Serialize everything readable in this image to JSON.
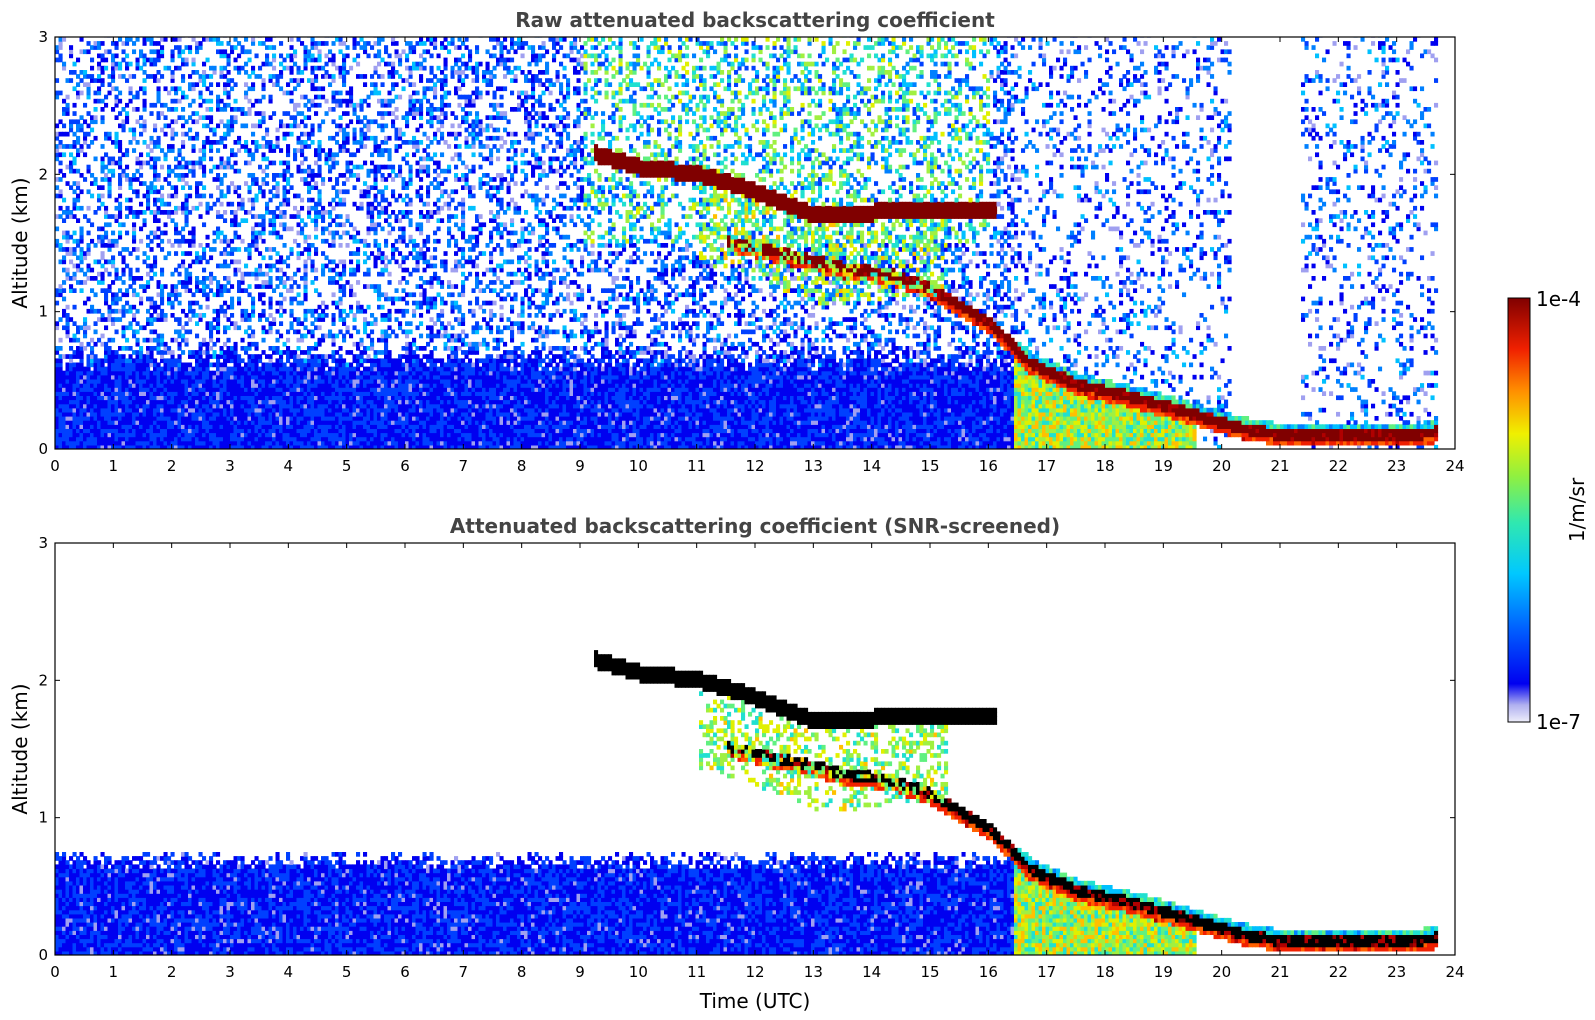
{
  "chart_data": [
    {
      "type": "heatmap",
      "title": "Raw attenuated backscattering coefficient",
      "xlabel": "",
      "ylabel": "Altitude (km)",
      "xlim": [
        0,
        24
      ],
      "ylim": [
        0,
        3
      ],
      "xticks": [
        "0",
        "1",
        "2",
        "3",
        "4",
        "5",
        "6",
        "7",
        "8",
        "9",
        "10",
        "11",
        "12",
        "13",
        "14",
        "15",
        "16",
        "17",
        "18",
        "19",
        "20",
        "21",
        "22",
        "23",
        "24"
      ],
      "yticks": [
        "0",
        "1",
        "2",
        "3"
      ],
      "screened": false,
      "cloud_layer": [
        [
          9.2,
          2.2
        ],
        [
          10,
          2.1
        ],
        [
          11,
          2.05
        ],
        [
          11.8,
          1.95
        ],
        [
          12.4,
          1.85
        ],
        [
          13,
          1.75
        ],
        [
          13.8,
          1.75
        ],
        [
          14.4,
          1.8
        ],
        [
          15,
          1.8
        ],
        [
          16.1,
          1.8
        ]
      ],
      "lower_layer": [
        [
          11.5,
          1.55
        ],
        [
          12.5,
          1.45
        ],
        [
          13.5,
          1.35
        ],
        [
          14.3,
          1.3
        ],
        [
          15,
          1.2
        ],
        [
          16,
          0.95
        ],
        [
          16.7,
          0.65
        ],
        [
          17.5,
          0.5
        ],
        [
          18.5,
          0.4
        ],
        [
          19.5,
          0.28
        ],
        [
          20.3,
          0.18
        ],
        [
          21,
          0.13
        ],
        [
          22,
          0.12
        ],
        [
          23,
          0.12
        ],
        [
          23.6,
          0.15
        ]
      ]
    },
    {
      "type": "heatmap",
      "title": "Attenuated backscattering coefficient (SNR-screened)",
      "xlabel": "Time (UTC)",
      "ylabel": "Altitude (km)",
      "xlim": [
        0,
        24
      ],
      "ylim": [
        0,
        3
      ],
      "xticks": [
        "0",
        "1",
        "2",
        "3",
        "4",
        "5",
        "6",
        "7",
        "8",
        "9",
        "10",
        "11",
        "12",
        "13",
        "14",
        "15",
        "16",
        "17",
        "18",
        "19",
        "20",
        "21",
        "22",
        "23",
        "24"
      ],
      "yticks": [
        "0",
        "1",
        "2",
        "3"
      ],
      "screened": true,
      "cloud_layer": [
        [
          9.2,
          2.2
        ],
        [
          10,
          2.1
        ],
        [
          11,
          2.05
        ],
        [
          11.8,
          1.95
        ],
        [
          12.4,
          1.85
        ],
        [
          13,
          1.75
        ],
        [
          13.8,
          1.75
        ],
        [
          14.4,
          1.8
        ],
        [
          15,
          1.8
        ],
        [
          16.1,
          1.8
        ]
      ],
      "lower_layer": [
        [
          11.5,
          1.55
        ],
        [
          12.5,
          1.45
        ],
        [
          13.5,
          1.35
        ],
        [
          14.3,
          1.3
        ],
        [
          15,
          1.2
        ],
        [
          16,
          0.95
        ],
        [
          16.7,
          0.65
        ],
        [
          17.5,
          0.5
        ],
        [
          18.5,
          0.4
        ],
        [
          19.5,
          0.28
        ],
        [
          20.3,
          0.18
        ],
        [
          21,
          0.13
        ],
        [
          22,
          0.12
        ],
        [
          23,
          0.12
        ],
        [
          23.6,
          0.15
        ]
      ]
    }
  ],
  "colorbar": {
    "max_label": "1e-4",
    "min_label": "1e-7",
    "unit_label": "1/m/sr",
    "colors": [
      "#e6e6f5",
      "#c8c8f0",
      "#a0a0f0",
      "#0000f0",
      "#0040ff",
      "#0080ff",
      "#00c0ff",
      "#20e0d0",
      "#60f080",
      "#a0f040",
      "#e0f000",
      "#ffc000",
      "#ff6000",
      "#f02000",
      "#b00000",
      "#800000"
    ]
  }
}
